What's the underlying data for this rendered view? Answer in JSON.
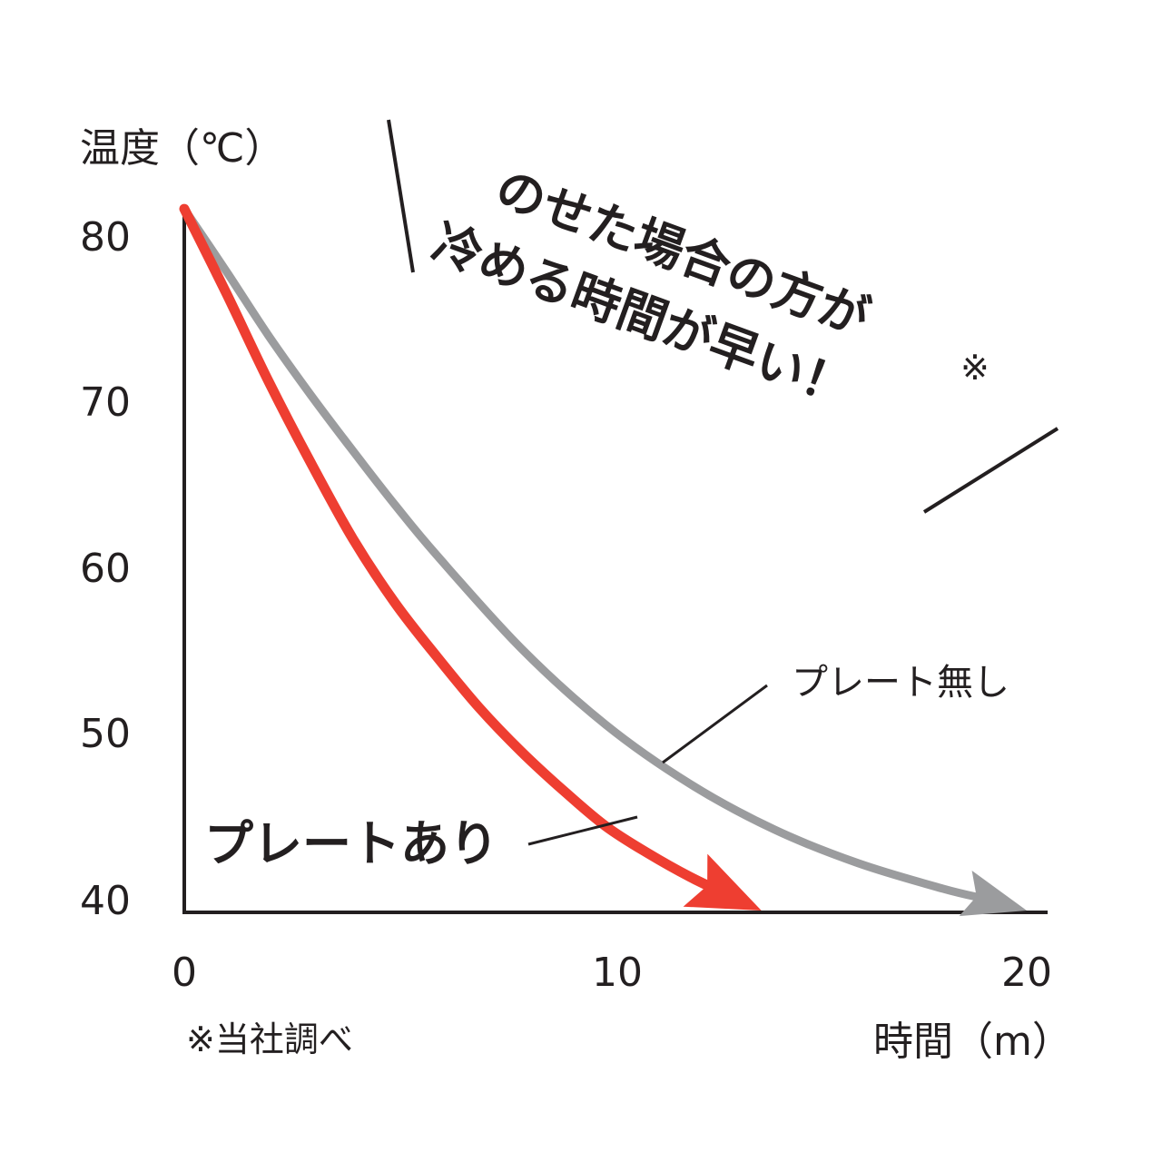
{
  "chart_data": {
    "type": "line",
    "ylabel": "温度（℃）",
    "xlabel": "時間（m）",
    "y_ticks": [
      "80",
      "70",
      "60",
      "50",
      "40"
    ],
    "x_ticks": [
      "0",
      "10",
      "20"
    ],
    "ylim": [
      40,
      82
    ],
    "xlim": [
      0,
      20
    ],
    "series": [
      {
        "name": "プレート無し",
        "color": "#9b9c9e",
        "x": [
          0,
          1,
          2,
          3,
          4,
          5,
          6,
          8,
          10,
          12,
          14,
          16,
          18,
          19,
          20
        ],
        "y": [
          81.5,
          77.8,
          74.0,
          70.5,
          67.2,
          64.0,
          61.0,
          55.5,
          51.0,
          47.5,
          44.8,
          42.8,
          41.3,
          40.7,
          40.0
        ]
      },
      {
        "name": "プレートあり",
        "color": "#ee3e31",
        "x": [
          0,
          1,
          2,
          3,
          4,
          5,
          6,
          7,
          8,
          9,
          10,
          11,
          12,
          13,
          13.7
        ],
        "y": [
          81.5,
          76.5,
          71.3,
          66.5,
          62.0,
          58.2,
          55.0,
          52.0,
          49.4,
          47.1,
          45.0,
          43.4,
          42.0,
          40.8,
          40.0
        ]
      }
    ],
    "annotation": {
      "line1": "のせた場合の方が",
      "line2": "冷める時間が早い！",
      "mark": "※"
    },
    "footnote": "※当社調べ"
  }
}
